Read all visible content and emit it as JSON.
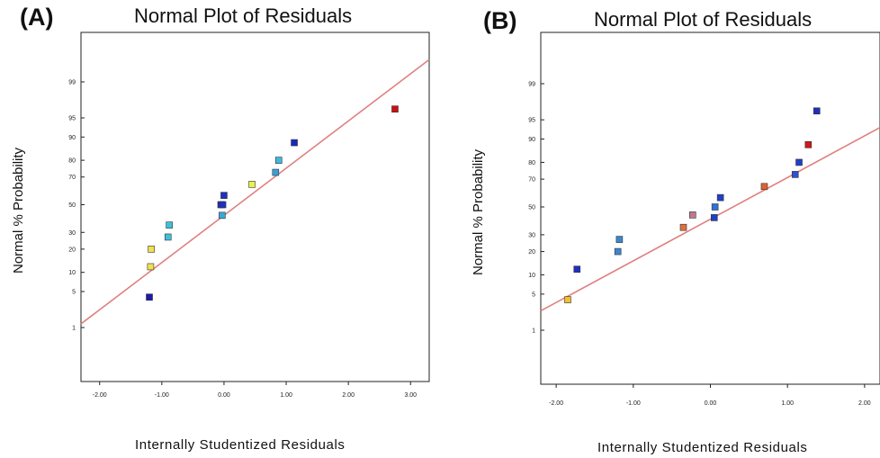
{
  "chart_data": [
    {
      "type": "scatter",
      "panel_label": "(A)",
      "title": "Normal Plot of Residuals",
      "xlabel": "Internally Studentized Residuals",
      "ylabel": "Normal % Probability",
      "x_ticks": [
        "-2.00",
        "-1.00",
        "0.00",
        "1.00",
        "2.00",
        "3.00"
      ],
      "y_ticks": [
        "1",
        "5",
        "10",
        "20",
        "30",
        "50",
        "70",
        "80",
        "90",
        "95",
        "99"
      ],
      "xlim": [
        -2.3,
        3.3
      ],
      "y_scale": "normal-probability",
      "reference_line": {
        "x": [
          -2.3,
          3.3
        ],
        "y": [
          1.2,
          99.7
        ],
        "color": "#e08080"
      },
      "points": [
        {
          "x": -1.2,
          "y": 4,
          "color": "#1c1ca8"
        },
        {
          "x": -1.18,
          "y": 12,
          "color": "#f0e050"
        },
        {
          "x": -1.17,
          "y": 20,
          "color": "#f0e050"
        },
        {
          "x": -0.9,
          "y": 27,
          "color": "#40c0d8"
        },
        {
          "x": -0.88,
          "y": 35,
          "color": "#40c0d8"
        },
        {
          "x": -0.03,
          "y": 42,
          "color": "#38a8d8"
        },
        {
          "x": -0.05,
          "y": 50,
          "color": "#2030c0"
        },
        {
          "x": -0.02,
          "y": 50,
          "color": "#2030c0"
        },
        {
          "x": 0.0,
          "y": 57,
          "color": "#2030c0"
        },
        {
          "x": 0.45,
          "y": 65,
          "color": "#e8f050"
        },
        {
          "x": 0.83,
          "y": 73,
          "color": "#38a0d8"
        },
        {
          "x": 0.88,
          "y": 80,
          "color": "#40b8e0"
        },
        {
          "x": 1.13,
          "y": 88,
          "color": "#1828c0"
        },
        {
          "x": 2.75,
          "y": 96.5,
          "color": "#cc1010"
        }
      ]
    },
    {
      "type": "scatter",
      "panel_label": "(B)",
      "title": "Normal Plot of Residuals",
      "xlabel": "Internally Studentized Residuals",
      "ylabel": "Normal % Probability",
      "x_ticks": [
        "-2.00",
        "-1.00",
        "0.00",
        "1.00",
        "2.00"
      ],
      "y_ticks": [
        "1",
        "5",
        "10",
        "20",
        "30",
        "50",
        "70",
        "80",
        "90",
        "95",
        "99"
      ],
      "xlim": [
        -2.2,
        2.2
      ],
      "y_scale": "normal-probability",
      "reference_line": {
        "x": [
          -2.2,
          2.2
        ],
        "y": [
          2.5,
          93.3
        ],
        "color": "#e08080"
      },
      "points": [
        {
          "x": -1.85,
          "y": 4,
          "color": "#f0c030"
        },
        {
          "x": -1.73,
          "y": 12,
          "color": "#2030c0"
        },
        {
          "x": -1.2,
          "y": 20,
          "color": "#3888d0"
        },
        {
          "x": -1.18,
          "y": 27,
          "color": "#3888d0"
        },
        {
          "x": -0.35,
          "y": 35,
          "color": "#e07040"
        },
        {
          "x": -0.23,
          "y": 44,
          "color": "#c07890"
        },
        {
          "x": 0.05,
          "y": 42,
          "color": "#2040c8"
        },
        {
          "x": 0.06,
          "y": 50,
          "color": "#3070d8"
        },
        {
          "x": 0.13,
          "y": 57,
          "color": "#2040c8"
        },
        {
          "x": 0.7,
          "y": 65,
          "color": "#e06030"
        },
        {
          "x": 1.1,
          "y": 73,
          "color": "#3050d0"
        },
        {
          "x": 1.15,
          "y": 80,
          "color": "#2040c8"
        },
        {
          "x": 1.27,
          "y": 88,
          "color": "#d01818"
        },
        {
          "x": 1.38,
          "y": 96.5,
          "color": "#2030b8"
        }
      ]
    }
  ]
}
